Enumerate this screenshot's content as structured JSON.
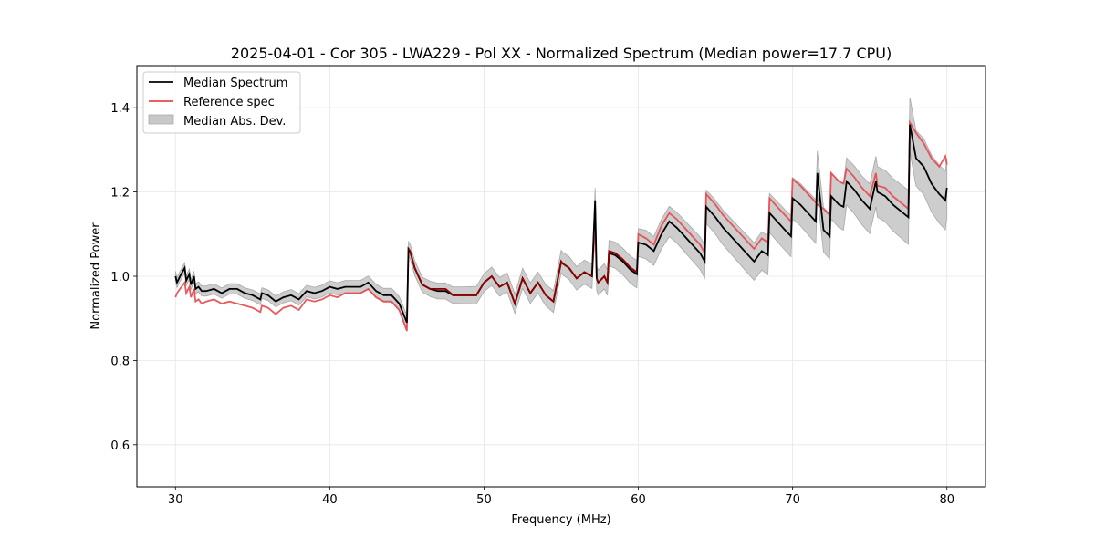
{
  "chart_data": {
    "type": "line",
    "title": "2025-04-01 - Cor 305 - LWA229 - Pol XX - Normalized Spectrum (Median power=17.7 CPU)",
    "xlabel": "Frequency (MHz)",
    "ylabel": "Normalized Power",
    "xlim": [
      27.5,
      82.5
    ],
    "ylim": [
      0.5,
      1.5
    ],
    "xticks": [
      30,
      40,
      50,
      60,
      70,
      80
    ],
    "xtick_labels": [
      "30",
      "40",
      "50",
      "60",
      "70",
      "80"
    ],
    "yticks": [
      0.6,
      0.8,
      1.0,
      1.2,
      1.4
    ],
    "ytick_labels": [
      "0.6",
      "0.8",
      "1.0",
      "1.2",
      "1.4"
    ],
    "grid": true,
    "legend_position": "top-left",
    "legend": [
      {
        "label": "Median Spectrum",
        "kind": "line",
        "color": "#000000"
      },
      {
        "label": "Reference spec",
        "kind": "line",
        "color": "#e8474c"
      },
      {
        "label": "Median Abs. Dev.",
        "kind": "band",
        "color": "#b0b0b0"
      }
    ],
    "series": [
      {
        "name": "Median Spectrum",
        "color": "#000000",
        "x": [
          30.0,
          30.1,
          30.3,
          30.6,
          30.7,
          30.9,
          31.0,
          31.2,
          31.3,
          31.5,
          31.7,
          32.0,
          32.5,
          33.0,
          33.5,
          34.0,
          34.5,
          35.0,
          35.5,
          35.6,
          36.0,
          36.5,
          37.0,
          37.5,
          38.0,
          38.5,
          39.0,
          39.5,
          40.0,
          40.5,
          41.0,
          41.5,
          42.0,
          42.5,
          43.0,
          43.5,
          44.0,
          44.5,
          45.0,
          45.1,
          45.2,
          45.5,
          46.0,
          46.5,
          47.0,
          47.5,
          48.0,
          48.5,
          49.0,
          49.5,
          50.0,
          50.5,
          51.0,
          51.5,
          52.0,
          52.5,
          53.0,
          53.5,
          54.0,
          54.5,
          55.0,
          55.1,
          55.5,
          56.0,
          56.5,
          57.0,
          57.2,
          57.3,
          57.4,
          57.8,
          58.0,
          58.1,
          58.5,
          59.0,
          59.5,
          59.9,
          60.0,
          60.5,
          61.0,
          61.5,
          62.0,
          62.5,
          63.0,
          63.5,
          64.0,
          64.3,
          64.4,
          65.0,
          65.5,
          66.0,
          66.5,
          67.0,
          67.5,
          68.0,
          68.4,
          68.5,
          69.0,
          69.5,
          69.9,
          70.0,
          70.5,
          71.0,
          71.5,
          71.6,
          72.0,
          72.4,
          72.5,
          73.0,
          73.3,
          73.5,
          74.0,
          74.5,
          75.0,
          75.4,
          75.5,
          76.0,
          76.5,
          77.0,
          77.5,
          77.6,
          78.0,
          78.5,
          79.0,
          79.5,
          79.9,
          80.0
        ],
        "y": [
          1.0,
          0.985,
          1.0,
          1.02,
          0.99,
          1.005,
          0.98,
          1.0,
          0.97,
          0.975,
          0.965,
          0.965,
          0.97,
          0.96,
          0.97,
          0.97,
          0.96,
          0.955,
          0.945,
          0.96,
          0.955,
          0.94,
          0.95,
          0.955,
          0.945,
          0.965,
          0.96,
          0.965,
          0.975,
          0.97,
          0.975,
          0.975,
          0.975,
          0.985,
          0.965,
          0.955,
          0.955,
          0.935,
          0.89,
          1.065,
          1.06,
          1.02,
          0.98,
          0.97,
          0.965,
          0.965,
          0.955,
          0.955,
          0.955,
          0.955,
          0.985,
          1.0,
          0.975,
          0.985,
          0.935,
          0.995,
          0.96,
          0.985,
          0.955,
          0.94,
          1.035,
          1.03,
          1.02,
          0.995,
          1.01,
          1.0,
          1.18,
          0.995,
          0.985,
          1.0,
          0.985,
          1.055,
          1.05,
          1.035,
          1.015,
          1.005,
          1.08,
          1.075,
          1.06,
          1.1,
          1.13,
          1.115,
          1.095,
          1.075,
          1.055,
          1.035,
          1.165,
          1.14,
          1.115,
          1.095,
          1.075,
          1.055,
          1.035,
          1.06,
          1.05,
          1.15,
          1.13,
          1.11,
          1.095,
          1.185,
          1.17,
          1.15,
          1.13,
          1.245,
          1.11,
          1.095,
          1.19,
          1.17,
          1.165,
          1.225,
          1.205,
          1.18,
          1.16,
          1.225,
          1.2,
          1.19,
          1.17,
          1.155,
          1.14,
          1.36,
          1.28,
          1.26,
          1.22,
          1.195,
          1.18,
          1.21
        ]
      },
      {
        "name": "Reference spec",
        "color": "#e8474c",
        "x": [
          30.0,
          30.1,
          30.3,
          30.6,
          30.7,
          30.9,
          31.0,
          31.2,
          31.3,
          31.5,
          31.7,
          32.0,
          32.5,
          33.0,
          33.5,
          34.0,
          34.5,
          35.0,
          35.5,
          35.6,
          36.0,
          36.5,
          37.0,
          37.5,
          38.0,
          38.5,
          39.0,
          39.5,
          40.0,
          40.5,
          41.0,
          41.5,
          42.0,
          42.5,
          43.0,
          43.5,
          44.0,
          44.5,
          45.0,
          45.1,
          45.2,
          45.5,
          46.0,
          46.5,
          47.0,
          47.5,
          48.0,
          48.5,
          49.0,
          49.5,
          50.0,
          50.5,
          51.0,
          51.5,
          52.0,
          52.5,
          53.0,
          53.5,
          54.0,
          54.5,
          55.0,
          55.1,
          55.5,
          56.0,
          56.5,
          57.0,
          57.2,
          57.3,
          57.4,
          57.8,
          58.0,
          58.1,
          58.5,
          59.0,
          59.5,
          59.9,
          60.0,
          60.5,
          61.0,
          61.5,
          62.0,
          62.5,
          63.0,
          63.5,
          64.0,
          64.3,
          64.4,
          65.0,
          65.5,
          66.0,
          66.5,
          67.0,
          67.5,
          68.0,
          68.4,
          68.5,
          69.0,
          69.5,
          69.9,
          70.0,
          70.5,
          71.0,
          71.5,
          71.6,
          72.0,
          72.4,
          72.5,
          73.0,
          73.3,
          73.5,
          74.0,
          74.5,
          75.0,
          75.4,
          75.5,
          76.0,
          76.5,
          77.0,
          77.5,
          77.6,
          78.0,
          78.5,
          79.0,
          79.5,
          79.9,
          80.0
        ],
        "y": [
          0.95,
          0.96,
          0.97,
          0.985,
          0.96,
          0.975,
          0.95,
          0.97,
          0.94,
          0.945,
          0.935,
          0.94,
          0.945,
          0.935,
          0.94,
          0.935,
          0.93,
          0.925,
          0.915,
          0.93,
          0.925,
          0.91,
          0.925,
          0.93,
          0.92,
          0.945,
          0.94,
          0.945,
          0.955,
          0.95,
          0.96,
          0.96,
          0.96,
          0.97,
          0.95,
          0.94,
          0.94,
          0.92,
          0.87,
          1.065,
          1.06,
          1.02,
          0.98,
          0.97,
          0.97,
          0.97,
          0.955,
          0.955,
          0.955,
          0.955,
          0.985,
          1.0,
          0.975,
          0.985,
          0.935,
          0.995,
          0.96,
          0.985,
          0.955,
          0.94,
          1.035,
          1.03,
          1.02,
          0.995,
          1.01,
          1.0,
          1.12,
          0.995,
          0.985,
          1.0,
          0.985,
          1.06,
          1.055,
          1.04,
          1.02,
          1.01,
          1.1,
          1.09,
          1.075,
          1.12,
          1.15,
          1.135,
          1.115,
          1.095,
          1.075,
          1.055,
          1.195,
          1.17,
          1.145,
          1.125,
          1.105,
          1.085,
          1.065,
          1.09,
          1.08,
          1.185,
          1.165,
          1.145,
          1.13,
          1.23,
          1.215,
          1.195,
          1.175,
          1.17,
          1.16,
          1.145,
          1.245,
          1.225,
          1.22,
          1.255,
          1.235,
          1.21,
          1.19,
          1.245,
          1.215,
          1.21,
          1.19,
          1.175,
          1.16,
          1.365,
          1.34,
          1.315,
          1.28,
          1.26,
          1.285,
          1.265
        ]
      }
    ],
    "band": {
      "name": "Median Abs. Dev.",
      "color": "#b0b0b0",
      "half_width_start": 0.012,
      "half_width_end": 0.07
    }
  }
}
